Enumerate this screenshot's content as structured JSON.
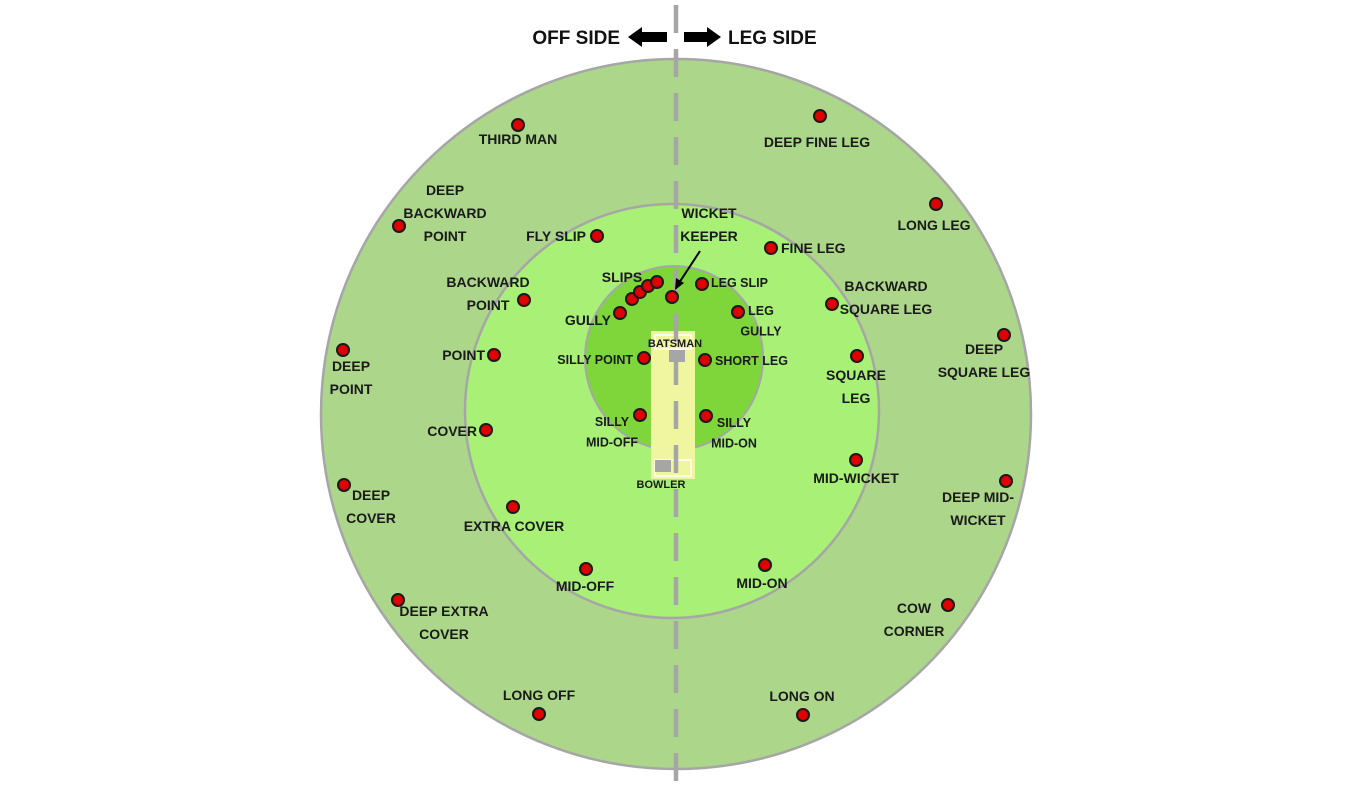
{
  "header": {
    "off_side": "OFF SIDE",
    "leg_side": "LEG SIDE"
  },
  "colors": {
    "outfield": "#acd68a",
    "inner_field": "#a9f077",
    "close_field": "#7ed63a",
    "ring": "#a6a6a6",
    "pitch": "#f0f5a0",
    "fielder": "#e00000",
    "center_line": "#a6a6a6"
  },
  "pitch": {
    "batsman": "BATSMAN",
    "bowler": "BOWLER"
  },
  "positions": {
    "third_man": [
      "THIRD MAN"
    ],
    "deep_backward_point": [
      "DEEP",
      "BACKWARD",
      "POINT"
    ],
    "fly_slip": [
      "FLY SLIP"
    ],
    "wicket_keeper": [
      "WICKET",
      "KEEPER"
    ],
    "slips": [
      "SLIPS"
    ],
    "backward_point": [
      "BACKWARD",
      "POINT"
    ],
    "gully": [
      "GULLY"
    ],
    "deep_point": [
      "DEEP",
      "POINT"
    ],
    "point": [
      "POINT"
    ],
    "silly_point": [
      "SILLY POINT"
    ],
    "silly_mid_off": [
      "SILLY",
      "MID-OFF"
    ],
    "cover": [
      "COVER"
    ],
    "deep_cover": [
      "DEEP",
      "COVER"
    ],
    "extra_cover": [
      "EXTRA COVER"
    ],
    "mid_off": [
      "MID-OFF"
    ],
    "deep_extra_cover": [
      "DEEP EXTRA",
      "COVER"
    ],
    "long_off": [
      "LONG OFF"
    ],
    "deep_fine_leg": [
      "DEEP FINE LEG"
    ],
    "long_leg": [
      "LONG LEG"
    ],
    "fine_leg": [
      "FINE LEG"
    ],
    "leg_slip": [
      "LEG SLIP"
    ],
    "backward_square_leg": [
      "BACKWARD",
      "SQUARE LEG"
    ],
    "leg_gully": [
      "LEG",
      "GULLY"
    ],
    "deep_square_leg": [
      "DEEP",
      "SQUARE LEG"
    ],
    "short_leg": [
      "SHORT LEG"
    ],
    "square_leg": [
      "SQUARE",
      "LEG"
    ],
    "silly_mid_on": [
      "SILLY",
      "MID-ON"
    ],
    "mid_wicket": [
      "MID-WICKET"
    ],
    "deep_mid_wicket": [
      "DEEP MID-",
      "WICKET"
    ],
    "mid_on": [
      "MID-ON"
    ],
    "cow_corner": [
      "COW",
      "CORNER"
    ],
    "long_on": [
      "LONG ON"
    ]
  }
}
